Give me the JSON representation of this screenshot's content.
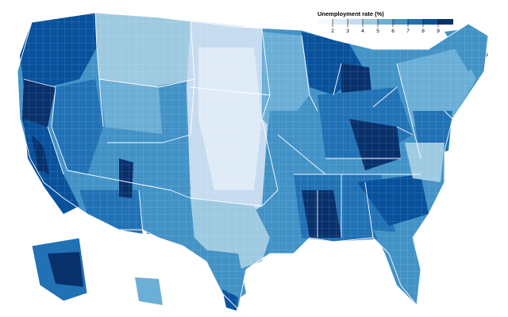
{
  "map": {
    "type": "choropleth",
    "region": "United States counties",
    "legend": {
      "title": "Unemployment rate (%)",
      "ticks": [
        "2",
        "3",
        "4",
        "5",
        "6",
        "7",
        "8",
        "9"
      ],
      "scale": [
        "#f7fbff",
        "#deebf7",
        "#c6dbef",
        "#9ecae1",
        "#6baed6",
        "#4292c6",
        "#2171b5",
        "#08519c",
        "#08306b"
      ]
    },
    "colors": {
      "background": "#ffffff",
      "state_border": "#ffffff"
    }
  }
}
